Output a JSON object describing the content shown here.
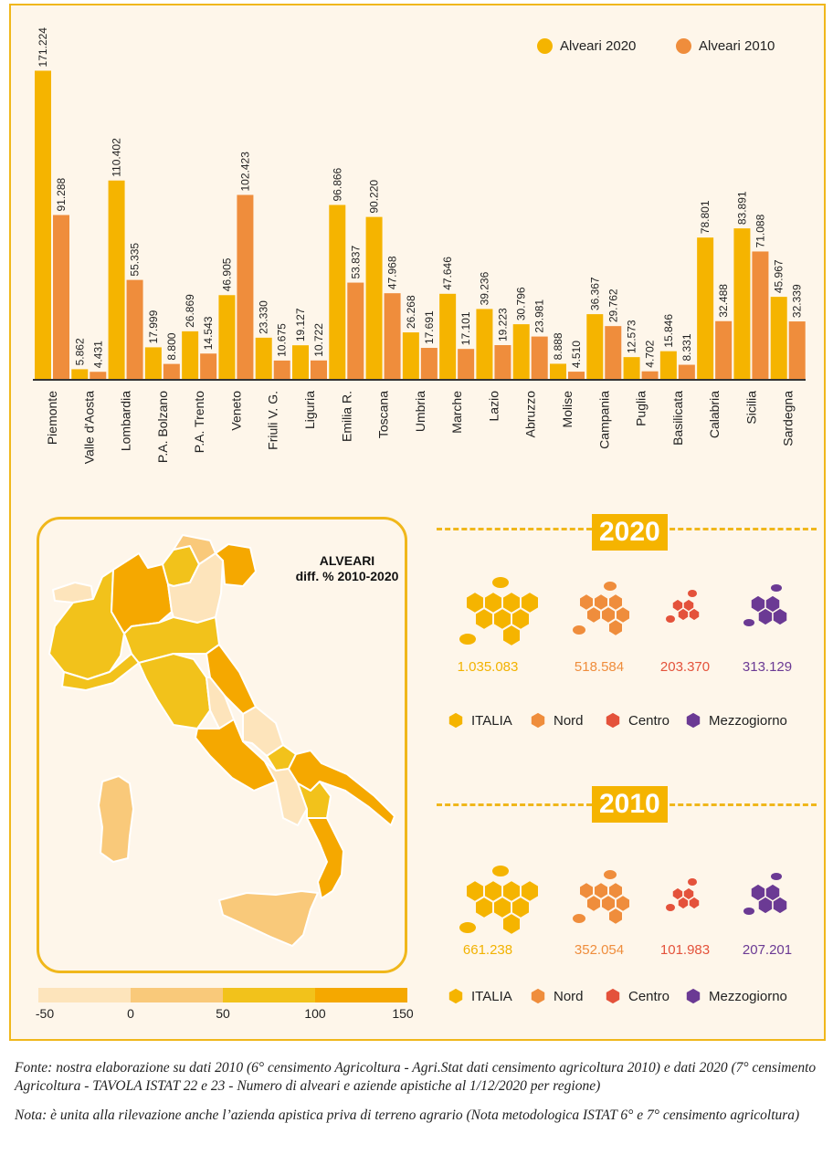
{
  "chart_data": {
    "type": "bar",
    "categories": [
      "Piemonte",
      "Valle d'Aosta",
      "Lombardia",
      "P.A. Bolzano",
      "P.A. Trento",
      "Veneto",
      "Friuli V. G.",
      "Liguria",
      "Emilia R.",
      "Toscana",
      "Umbria",
      "Marche",
      "Lazio",
      "Abruzzo",
      "Molise",
      "Campania",
      "Puglia",
      "Basilicata",
      "Calabria",
      "Sicilia",
      "Sardegna"
    ],
    "series": [
      {
        "name": "Alveari 2020",
        "color": "#f5b400",
        "values": [
          171224,
          5862,
          110402,
          17999,
          26869,
          46905,
          23330,
          19127,
          96866,
          90220,
          26268,
          47646,
          39236,
          30796,
          8888,
          36367,
          12573,
          15846,
          78801,
          83891,
          45967
        ],
        "labels": [
          "171.224",
          "5.862",
          "110.402",
          "17.999",
          "26.869",
          "46.905",
          "23.330",
          "19.127",
          "96.866",
          "90.220",
          "26.268",
          "47.646",
          "39.236",
          "30.796",
          "8.888",
          "36.367",
          "12.573",
          "15.846",
          "78.801",
          "83.891",
          "45.967"
        ]
      },
      {
        "name": "Alveari 2010",
        "color": "#ef8d3c",
        "values": [
          91288,
          4431,
          55335,
          8800,
          14543,
          102423,
          10675,
          10722,
          53837,
          47968,
          17691,
          17101,
          19223,
          23981,
          4510,
          29762,
          4702,
          8331,
          32488,
          71088,
          32339
        ],
        "labels": [
          "91.288",
          "4.431",
          "55.335",
          "8.800",
          "14.543",
          "102.423",
          "10.675",
          "10.722",
          "53.837",
          "47.968",
          "17.691",
          "17.101",
          "19.223",
          "23.981",
          "4.510",
          "29.762",
          "4.702",
          "8.331",
          "32.488",
          "71.088",
          "32.339"
        ]
      }
    ],
    "ylim": [
      0,
      180000
    ],
    "legend": "top-right"
  },
  "map": {
    "title_line1": "ALVEARI",
    "title_line2": "diff. % 2010-2020",
    "scale_labels": [
      "-50",
      "0",
      "50",
      "100",
      "150"
    ],
    "scale_colors": [
      "#fde4bb",
      "#f9c97a",
      "#f2c21b",
      "#f5a800"
    ]
  },
  "totals": {
    "y2020": {
      "year": "2020",
      "italia": "1.035.083",
      "nord": "518.584",
      "centro": "203.370",
      "mezzogiorno": "313.129"
    },
    "y2010": {
      "year": "2010",
      "italia": "661.238",
      "nord": "352.054",
      "centro": "101.983",
      "mezzogiorno": "207.201"
    }
  },
  "region_legend": {
    "italia": "ITALIA",
    "nord": "Nord",
    "centro": "Centro",
    "mezzogiorno": "Mezzogiorno"
  },
  "colors": {
    "italia": "#f5b400",
    "nord": "#ef8d3c",
    "centro": "#e4523b",
    "mezzogiorno": "#6b3a94"
  },
  "footnotes": {
    "fonte": "Fonte: nostra elaborazione su dati 2010 (6° censimento Agricoltura - Agri.Stat dati censimento agricoltura 2010) e dati 2020 (7° censimento Agricoltura - TAVOLA ISTAT 22 e 23 - Numero di alveari e aziende apistiche al 1/12/2020 per regione)",
    "nota": "Nota: è unita alla rilevazione anche l’azienda apistica priva di terreno agrario (Nota metodologica ISTAT 6° e 7° censimento agricoltura)"
  }
}
